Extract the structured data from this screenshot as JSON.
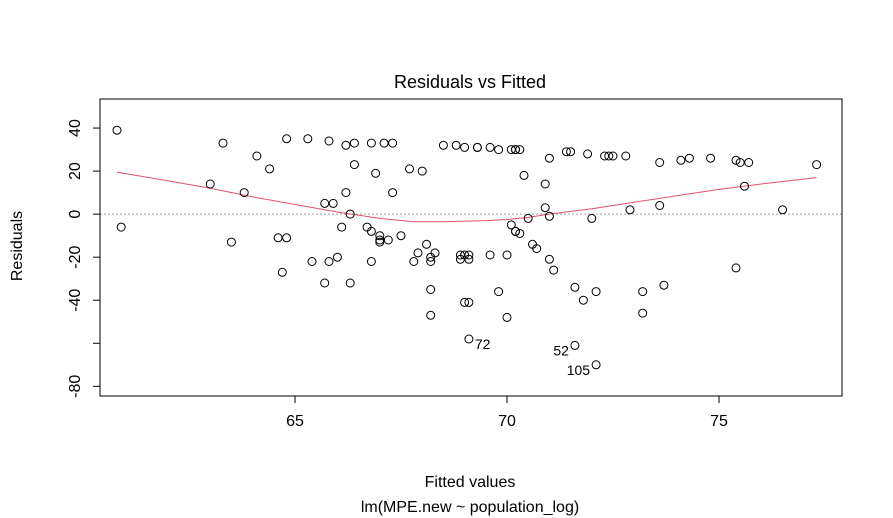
{
  "chart_data": {
    "type": "scatter",
    "title": "Residuals vs Fitted",
    "xlabel": "Fitted values",
    "sublabel": "lm(MPE.new ~ population_log)",
    "ylabel": "Residuals",
    "xlim": [
      60.4,
      77.9
    ],
    "ylim": [
      -84.5,
      53.5
    ],
    "xticks": [
      65,
      70,
      75
    ],
    "yticks": [
      40,
      20,
      0,
      -20,
      -40,
      -60,
      -80
    ],
    "ytick_labels": [
      "40",
      "20",
      "0",
      "-20",
      "-40",
      "",
      "-80"
    ],
    "reference_line": 0,
    "colors": {
      "points": "#000000",
      "smooth": "#DF536B",
      "reference": "#A0A0A0"
    },
    "points": [
      {
        "x": 60.8,
        "y": 39
      },
      {
        "x": 60.9,
        "y": -6
      },
      {
        "x": 63.0,
        "y": 14
      },
      {
        "x": 63.3,
        "y": 33
      },
      {
        "x": 63.5,
        "y": -13
      },
      {
        "x": 63.8,
        "y": 10
      },
      {
        "x": 64.1,
        "y": 27
      },
      {
        "x": 64.4,
        "y": 21
      },
      {
        "x": 64.6,
        "y": -11
      },
      {
        "x": 64.7,
        "y": -27
      },
      {
        "x": 64.8,
        "y": 35
      },
      {
        "x": 64.8,
        "y": -11
      },
      {
        "x": 65.3,
        "y": 35
      },
      {
        "x": 65.4,
        "y": -22
      },
      {
        "x": 65.7,
        "y": -32
      },
      {
        "x": 65.7,
        "y": 5
      },
      {
        "x": 65.8,
        "y": 34
      },
      {
        "x": 65.8,
        "y": -22
      },
      {
        "x": 65.9,
        "y": 5
      },
      {
        "x": 66.0,
        "y": -20
      },
      {
        "x": 66.1,
        "y": -6
      },
      {
        "x": 66.2,
        "y": 10
      },
      {
        "x": 66.2,
        "y": 32
      },
      {
        "x": 66.3,
        "y": 0
      },
      {
        "x": 66.3,
        "y": -32
      },
      {
        "x": 66.4,
        "y": 33
      },
      {
        "x": 66.4,
        "y": 23
      },
      {
        "x": 66.7,
        "y": -6
      },
      {
        "x": 66.8,
        "y": -8
      },
      {
        "x": 66.8,
        "y": 33
      },
      {
        "x": 66.8,
        "y": -22
      },
      {
        "x": 66.9,
        "y": 19
      },
      {
        "x": 67.0,
        "y": -10
      },
      {
        "x": 67.0,
        "y": -12
      },
      {
        "x": 67.0,
        "y": -13
      },
      {
        "x": 67.1,
        "y": 33
      },
      {
        "x": 67.2,
        "y": -12
      },
      {
        "x": 67.3,
        "y": 33
      },
      {
        "x": 67.3,
        "y": 10
      },
      {
        "x": 67.5,
        "y": -10
      },
      {
        "x": 67.7,
        "y": 21
      },
      {
        "x": 67.8,
        "y": -22
      },
      {
        "x": 67.9,
        "y": -18
      },
      {
        "x": 68.0,
        "y": 20
      },
      {
        "x": 68.1,
        "y": -14
      },
      {
        "x": 68.2,
        "y": -20
      },
      {
        "x": 68.2,
        "y": -22
      },
      {
        "x": 68.2,
        "y": -35
      },
      {
        "x": 68.2,
        "y": -47
      },
      {
        "x": 68.3,
        "y": -18
      },
      {
        "x": 68.5,
        "y": 32
      },
      {
        "x": 68.8,
        "y": 32
      },
      {
        "x": 68.9,
        "y": -19
      },
      {
        "x": 68.9,
        "y": -21
      },
      {
        "x": 69.0,
        "y": -19
      },
      {
        "x": 69.0,
        "y": -41
      },
      {
        "x": 69.0,
        "y": 31
      },
      {
        "x": 69.1,
        "y": -41
      },
      {
        "x": 69.1,
        "y": -58,
        "label": "72"
      },
      {
        "x": 69.1,
        "y": -19
      },
      {
        "x": 69.1,
        "y": -21
      },
      {
        "x": 69.3,
        "y": 31
      },
      {
        "x": 69.3,
        "y": 31
      },
      {
        "x": 69.6,
        "y": 31
      },
      {
        "x": 69.6,
        "y": -19
      },
      {
        "x": 69.8,
        "y": -36
      },
      {
        "x": 69.8,
        "y": 30
      },
      {
        "x": 70.0,
        "y": -48
      },
      {
        "x": 70.0,
        "y": -19
      },
      {
        "x": 70.1,
        "y": 30
      },
      {
        "x": 70.1,
        "y": -5
      },
      {
        "x": 70.2,
        "y": -8
      },
      {
        "x": 70.2,
        "y": -8
      },
      {
        "x": 70.2,
        "y": 30
      },
      {
        "x": 70.2,
        "y": 30
      },
      {
        "x": 70.3,
        "y": 30
      },
      {
        "x": 70.3,
        "y": -9
      },
      {
        "x": 70.4,
        "y": 18
      },
      {
        "x": 70.5,
        "y": -2
      },
      {
        "x": 70.6,
        "y": -14
      },
      {
        "x": 70.7,
        "y": -16
      },
      {
        "x": 70.9,
        "y": 14
      },
      {
        "x": 70.9,
        "y": 3
      },
      {
        "x": 71.0,
        "y": -21
      },
      {
        "x": 71.0,
        "y": 26
      },
      {
        "x": 71.0,
        "y": -1
      },
      {
        "x": 71.1,
        "y": -26
      },
      {
        "x": 71.4,
        "y": 29
      },
      {
        "x": 71.5,
        "y": 29
      },
      {
        "x": 71.6,
        "y": -61,
        "label": "52"
      },
      {
        "x": 71.6,
        "y": -34
      },
      {
        "x": 71.8,
        "y": -40
      },
      {
        "x": 71.9,
        "y": 28
      },
      {
        "x": 72.0,
        "y": -2
      },
      {
        "x": 72.1,
        "y": -36
      },
      {
        "x": 72.1,
        "y": -70,
        "label": "105"
      },
      {
        "x": 72.3,
        "y": 27
      },
      {
        "x": 72.4,
        "y": 27
      },
      {
        "x": 72.5,
        "y": 27
      },
      {
        "x": 72.8,
        "y": 27
      },
      {
        "x": 72.9,
        "y": 2
      },
      {
        "x": 73.2,
        "y": -36
      },
      {
        "x": 73.2,
        "y": -46
      },
      {
        "x": 73.6,
        "y": 24
      },
      {
        "x": 73.6,
        "y": 4
      },
      {
        "x": 73.7,
        "y": -33
      },
      {
        "x": 74.1,
        "y": 25
      },
      {
        "x": 74.3,
        "y": 26
      },
      {
        "x": 74.8,
        "y": 26
      },
      {
        "x": 75.4,
        "y": 25
      },
      {
        "x": 75.4,
        "y": -25
      },
      {
        "x": 75.5,
        "y": 24
      },
      {
        "x": 75.6,
        "y": 13
      },
      {
        "x": 75.7,
        "y": 24
      },
      {
        "x": 76.5,
        "y": 2
      },
      {
        "x": 77.3,
        "y": 23
      }
    ],
    "smooth": [
      {
        "x": 60.8,
        "y": 19.5
      },
      {
        "x": 62.0,
        "y": 15.5
      },
      {
        "x": 63.0,
        "y": 12.0
      },
      {
        "x": 64.0,
        "y": 8.0
      },
      {
        "x": 65.0,
        "y": 4.5
      },
      {
        "x": 66.0,
        "y": 1.0
      },
      {
        "x": 67.0,
        "y": -2.0
      },
      {
        "x": 67.8,
        "y": -3.5
      },
      {
        "x": 68.5,
        "y": -3.5
      },
      {
        "x": 69.5,
        "y": -3.0
      },
      {
        "x": 70.0,
        "y": -2.5
      },
      {
        "x": 70.5,
        "y": -1.5
      },
      {
        "x": 71.0,
        "y": 0.0
      },
      {
        "x": 72.0,
        "y": 2.5
      },
      {
        "x": 73.0,
        "y": 5.5
      },
      {
        "x": 74.0,
        "y": 8.5
      },
      {
        "x": 75.0,
        "y": 11.5
      },
      {
        "x": 76.0,
        "y": 14.0
      },
      {
        "x": 77.3,
        "y": 17.0
      }
    ]
  }
}
